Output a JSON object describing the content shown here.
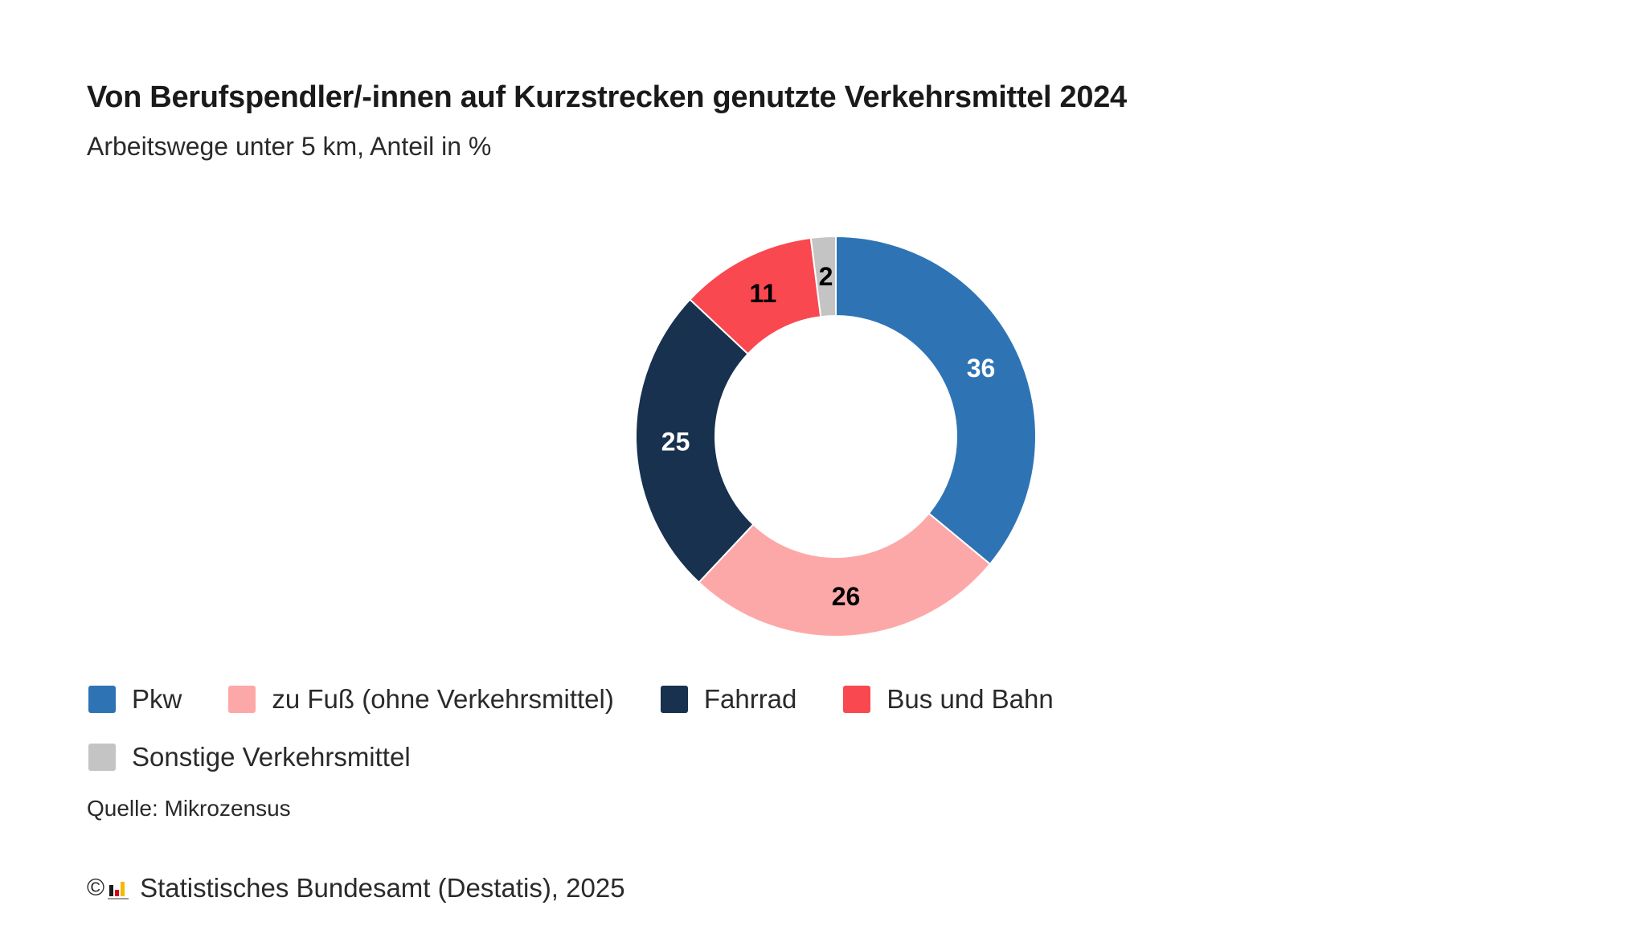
{
  "header": {
    "title": "Von Berufspendler/-innen auf Kurzstrecken genutzte Verkehrsmittel 2024",
    "subtitle": "Arbeitswege unter 5 km, Anteil in %"
  },
  "chart_data": {
    "type": "pie",
    "variant": "donut",
    "title": "Von Berufspendler/-innen auf Kurzstrecken genutzte Verkehrsmittel 2024",
    "subtitle": "Arbeitswege unter 5 km, Anteil in %",
    "categories": [
      "Pkw",
      "zu Fuß (ohne Verkehrsmittel)",
      "Fahrrad",
      "Bus und Bahn",
      "Sonstige Verkehrsmittel"
    ],
    "values": [
      36,
      26,
      25,
      11,
      2
    ],
    "colors": [
      "#2e74b5",
      "#fda8a8",
      "#17314f",
      "#f9484f",
      "#c4c4c4"
    ],
    "label_colors": [
      "#ffffff",
      "#000000",
      "#ffffff",
      "#000000",
      "#000000"
    ],
    "start_angle_deg": 0,
    "direction": "clockwise",
    "legend_position": "bottom-left"
  },
  "footer": {
    "source": "Quelle: Mikrozensus",
    "copyright_symbol": "©",
    "copyright_text": "Statistisches Bundesamt (Destatis), 2025",
    "logo_icon": "destatis-logo-icon"
  }
}
